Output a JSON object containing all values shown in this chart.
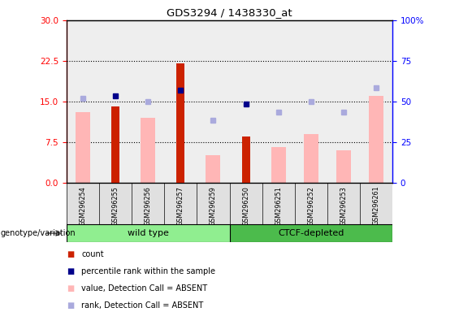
{
  "title": "GDS3294 / 1438330_at",
  "samples": [
    "GSM296254",
    "GSM296255",
    "GSM296256",
    "GSM296257",
    "GSM296259",
    "GSM296250",
    "GSM296251",
    "GSM296252",
    "GSM296253",
    "GSM296261"
  ],
  "groups": {
    "wild type": [
      0,
      1,
      2,
      3,
      4
    ],
    "CTCF-depleted": [
      5,
      6,
      7,
      8,
      9
    ]
  },
  "count": [
    null,
    14.0,
    null,
    22.0,
    null,
    8.5,
    null,
    null,
    null,
    null
  ],
  "percentile_rank": [
    null,
    16.0,
    null,
    17.0,
    null,
    14.5,
    null,
    null,
    null,
    null
  ],
  "value_absent": [
    13.0,
    null,
    12.0,
    null,
    5.0,
    null,
    6.5,
    9.0,
    6.0,
    16.0
  ],
  "rank_absent": [
    15.5,
    null,
    15.0,
    null,
    11.5,
    null,
    13.0,
    15.0,
    13.0,
    17.5
  ],
  "left_ylim": [
    0,
    30
  ],
  "right_ylim": [
    0,
    100
  ],
  "left_yticks": [
    0,
    7.5,
    15.0,
    22.5,
    30
  ],
  "right_yticks": [
    0,
    25,
    50,
    75,
    100
  ],
  "wt_color": "#90EE90",
  "ctcf_color": "#4CBB4C",
  "bar_color_count": "#cc2200",
  "bar_color_absent": "#FFB6B6",
  "dot_color_rank": "#00008B",
  "dot_color_rank_absent": "#AAAADD",
  "legend": [
    {
      "label": "count",
      "color": "#cc2200"
    },
    {
      "label": "percentile rank within the sample",
      "color": "#00008B"
    },
    {
      "label": "value, Detection Call = ABSENT",
      "color": "#FFB6B6"
    },
    {
      "label": "rank, Detection Call = ABSENT",
      "color": "#AAAADD"
    }
  ]
}
